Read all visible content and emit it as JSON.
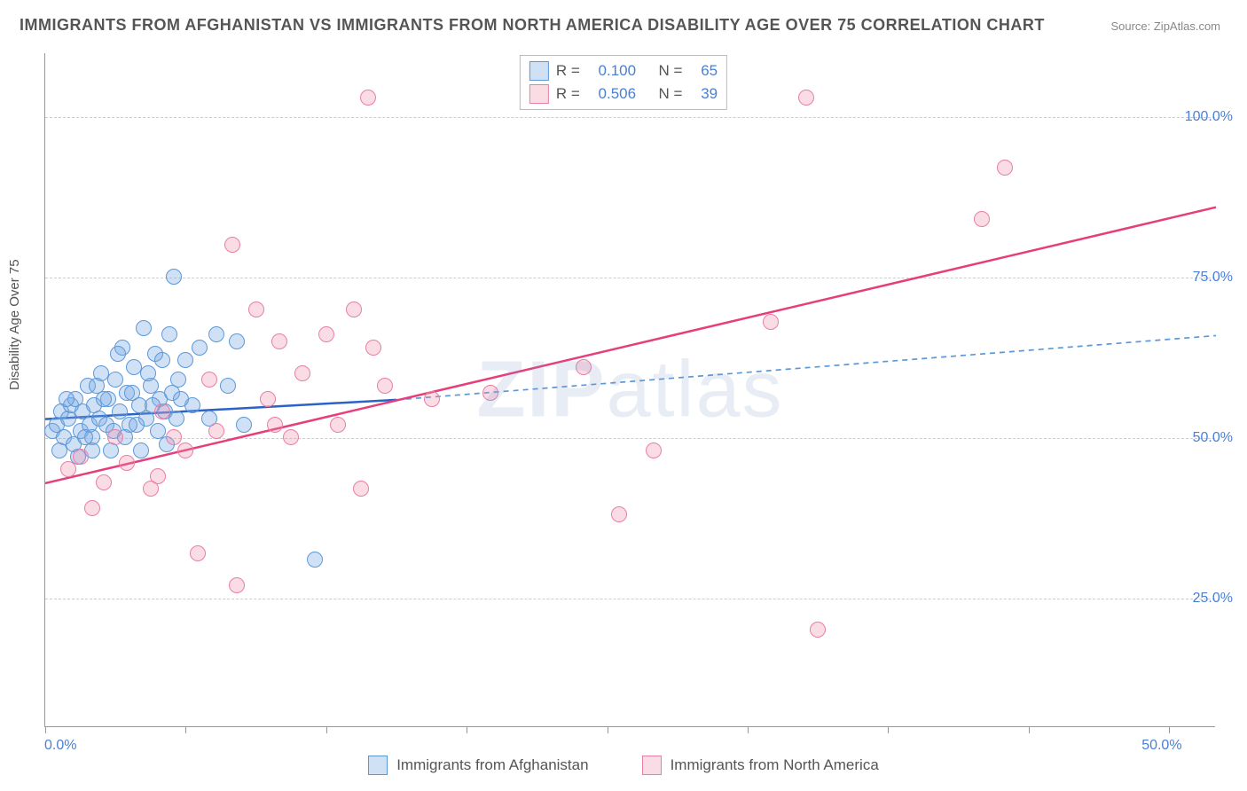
{
  "title": "IMMIGRANTS FROM AFGHANISTAN VS IMMIGRANTS FROM NORTH AMERICA DISABILITY AGE OVER 75 CORRELATION CHART",
  "source": "Source: ZipAtlas.com",
  "watermark_bold": "ZIP",
  "watermark_light": "atlas",
  "ylabel": "Disability Age Over 75",
  "chart": {
    "type": "scatter",
    "xlim": [
      0,
      50
    ],
    "ylim": [
      5,
      110
    ],
    "xtick_positions": [
      0,
      6,
      12,
      18,
      24,
      30,
      36,
      42,
      48
    ],
    "xtick_labels": {
      "0": "0.0%",
      "48": "50.0%"
    },
    "ytick_positions": [
      25,
      50,
      75,
      100
    ],
    "ytick_labels": {
      "25": "25.0%",
      "50": "50.0%",
      "75": "75.0%",
      "100": "100.0%"
    },
    "grid_color": "#cccccc",
    "axis_color": "#999999",
    "background_color": "#ffffff",
    "marker_radius": 9,
    "marker_border_width": 1.5,
    "series": [
      {
        "name": "afghanistan",
        "label": "Immigrants from Afghanistan",
        "fill": "rgba(120,170,230,0.35)",
        "stroke": "#5c98d8",
        "r_value": "0.100",
        "n_value": "65",
        "trend": {
          "x1": 0,
          "y1": 53,
          "x2": 15,
          "y2": 56,
          "color": "#2b62c6",
          "width": 2.5,
          "dash": "none"
        },
        "trend_ext": {
          "x1": 15,
          "y1": 56,
          "x2": 50,
          "y2": 66,
          "color": "#5c98d8",
          "width": 1.7,
          "dash": "6 5"
        },
        "points": [
          [
            0.3,
            51
          ],
          [
            0.5,
            52
          ],
          [
            0.7,
            54
          ],
          [
            0.8,
            50
          ],
          [
            1.0,
            53
          ],
          [
            1.1,
            55
          ],
          [
            1.2,
            49
          ],
          [
            1.3,
            56
          ],
          [
            1.5,
            51
          ],
          [
            1.6,
            54
          ],
          [
            1.8,
            58
          ],
          [
            1.9,
            52
          ],
          [
            2.0,
            50
          ],
          [
            2.1,
            55
          ],
          [
            2.3,
            53
          ],
          [
            2.4,
            60
          ],
          [
            2.6,
            52
          ],
          [
            2.7,
            56
          ],
          [
            2.9,
            51
          ],
          [
            3.0,
            59
          ],
          [
            3.2,
            54
          ],
          [
            3.3,
            64
          ],
          [
            3.5,
            57
          ],
          [
            3.6,
            52
          ],
          [
            3.8,
            61
          ],
          [
            4.0,
            55
          ],
          [
            4.2,
            67
          ],
          [
            4.3,
            53
          ],
          [
            4.5,
            58
          ],
          [
            4.7,
            63
          ],
          [
            4.9,
            56
          ],
          [
            5.1,
            54
          ],
          [
            5.3,
            66
          ],
          [
            5.5,
            75
          ],
          [
            5.7,
            59
          ],
          [
            6.0,
            62
          ],
          [
            6.3,
            55
          ],
          [
            6.6,
            64
          ],
          [
            7.0,
            53
          ],
          [
            7.3,
            66
          ],
          [
            7.8,
            58
          ],
          [
            8.2,
            65
          ],
          [
            8.5,
            52
          ],
          [
            11.5,
            31
          ],
          [
            2.0,
            48
          ],
          [
            1.4,
            47
          ],
          [
            0.6,
            48
          ],
          [
            0.9,
            56
          ],
          [
            1.7,
            50
          ],
          [
            2.2,
            58
          ],
          [
            2.8,
            48
          ],
          [
            3.1,
            63
          ],
          [
            3.4,
            50
          ],
          [
            3.7,
            57
          ],
          [
            3.9,
            52
          ],
          [
            4.1,
            48
          ],
          [
            4.4,
            60
          ],
          [
            4.6,
            55
          ],
          [
            4.8,
            51
          ],
          [
            5.0,
            62
          ],
          [
            5.2,
            49
          ],
          [
            5.4,
            57
          ],
          [
            5.6,
            53
          ],
          [
            5.8,
            56
          ],
          [
            2.5,
            56
          ]
        ]
      },
      {
        "name": "north-america",
        "label": "Immigrants from North America",
        "fill": "rgba(240,140,170,0.30)",
        "stroke": "#e97fa5",
        "r_value": "0.506",
        "n_value": "39",
        "trend": {
          "x1": 0,
          "y1": 43,
          "x2": 50,
          "y2": 86,
          "color": "#e63e7b",
          "width": 2.5,
          "dash": "none"
        },
        "points": [
          [
            1.0,
            45
          ],
          [
            1.5,
            47
          ],
          [
            2.0,
            39
          ],
          [
            2.5,
            43
          ],
          [
            3.0,
            50
          ],
          [
            3.5,
            46
          ],
          [
            4.5,
            42
          ],
          [
            5.0,
            54
          ],
          [
            6.0,
            48
          ],
          [
            6.5,
            32
          ],
          [
            7.3,
            51
          ],
          [
            8.0,
            80
          ],
          [
            8.2,
            27
          ],
          [
            9.0,
            70
          ],
          [
            9.5,
            56
          ],
          [
            9.8,
            52
          ],
          [
            10.0,
            65
          ],
          [
            11.0,
            60
          ],
          [
            12.0,
            66
          ],
          [
            12.5,
            52
          ],
          [
            13.2,
            70
          ],
          [
            13.5,
            42
          ],
          [
            14.0,
            64
          ],
          [
            14.5,
            58
          ],
          [
            19.0,
            57
          ],
          [
            23.0,
            61
          ],
          [
            24.5,
            38
          ],
          [
            26.0,
            48
          ],
          [
            31.0,
            68
          ],
          [
            32.5,
            103
          ],
          [
            33.0,
            20
          ],
          [
            40.0,
            84
          ],
          [
            41.0,
            92
          ],
          [
            13.8,
            103
          ],
          [
            4.8,
            44
          ],
          [
            5.5,
            50
          ],
          [
            7.0,
            59
          ],
          [
            10.5,
            50
          ],
          [
            16.5,
            56
          ]
        ]
      }
    ]
  },
  "legend_top": {
    "r_label": "R =",
    "n_label": "N ="
  },
  "colors": {
    "tick_label": "#4a7fd6",
    "text": "#555555"
  },
  "fonts": {
    "title_size": 18,
    "axis_label_size": 15,
    "tick_size": 16,
    "legend_size": 17
  }
}
